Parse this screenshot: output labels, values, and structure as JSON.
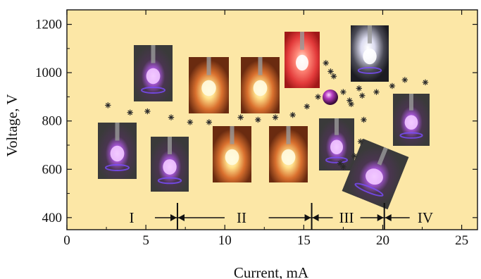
{
  "chart_data": {
    "type": "scatter",
    "xlabel": "Current, mA",
    "ylabel": "Voltage, V",
    "xlim": [
      0,
      26
    ],
    "ylim": [
      350,
      1260
    ],
    "xticks": [
      "0",
      "5",
      "10",
      "15",
      "20",
      "25"
    ],
    "yticks": [
      "400",
      "600",
      "800",
      "1000",
      "1200"
    ],
    "grid": false,
    "background_color": "#fce7a6",
    "marker_color": "#2a2a2a",
    "marker": "asterisk",
    "series": [
      {
        "points": [
          {
            "x": 2.6,
            "y": 865
          },
          {
            "x": 4.0,
            "y": 835
          },
          {
            "x": 5.1,
            "y": 840
          },
          {
            "x": 6.6,
            "y": 815
          },
          {
            "x": 7.8,
            "y": 795
          },
          {
            "x": 9.0,
            "y": 795
          },
          {
            "x": 11.0,
            "y": 815
          },
          {
            "x": 12.1,
            "y": 805
          },
          {
            "x": 13.2,
            "y": 815
          },
          {
            "x": 14.3,
            "y": 825
          },
          {
            "x": 15.2,
            "y": 860
          },
          {
            "x": 15.9,
            "y": 900
          },
          {
            "x": 16.4,
            "y": 1040
          },
          {
            "x": 16.7,
            "y": 1005
          },
          {
            "x": 16.9,
            "y": 985
          },
          {
            "x": 17.5,
            "y": 920
          },
          {
            "x": 17.3,
            "y": 625
          },
          {
            "x": 17.5,
            "y": 610
          },
          {
            "x": 17.9,
            "y": 885
          },
          {
            "x": 18.0,
            "y": 870
          },
          {
            "x": 18.2,
            "y": 655
          },
          {
            "x": 18.5,
            "y": 935
          },
          {
            "x": 18.6,
            "y": 715
          },
          {
            "x": 18.7,
            "y": 905
          },
          {
            "x": 18.8,
            "y": 805
          },
          {
            "x": 19.6,
            "y": 920
          },
          {
            "x": 20.6,
            "y": 945
          },
          {
            "x": 21.4,
            "y": 970
          },
          {
            "x": 22.7,
            "y": 960
          }
        ]
      }
    ],
    "regions": [
      {
        "label": "I",
        "x_start": 0,
        "x_end": 7.0
      },
      {
        "label": "II",
        "x_start": 7.0,
        "x_end": 15.5
      },
      {
        "label": "III",
        "x_start": 15.5,
        "x_end": 20.1
      },
      {
        "label": "IV",
        "x_start": 20.1,
        "x_end": 26
      }
    ],
    "region_boundaries": [
      7.0,
      15.5,
      20.1
    ],
    "inset_photos": [
      {
        "name": "photo-region-i-a",
        "tone": "violet"
      },
      {
        "name": "photo-region-i-b",
        "tone": "violet"
      },
      {
        "name": "photo-region-i-c",
        "tone": "violet"
      },
      {
        "name": "photo-region-ii-a",
        "tone": "warm"
      },
      {
        "name": "photo-region-ii-b",
        "tone": "warm"
      },
      {
        "name": "photo-region-ii-c",
        "tone": "warm"
      },
      {
        "name": "photo-region-ii-d",
        "tone": "warm"
      },
      {
        "name": "photo-region-ii-e",
        "tone": "warm"
      },
      {
        "name": "photo-region-ii-f",
        "tone": "red"
      },
      {
        "name": "photo-region-iii-a",
        "tone": "white"
      },
      {
        "name": "photo-region-iii-b",
        "tone": "violet"
      },
      {
        "name": "photo-region-iii-c",
        "tone": "violet"
      },
      {
        "name": "photo-region-iv-a",
        "tone": "violet"
      }
    ]
  }
}
